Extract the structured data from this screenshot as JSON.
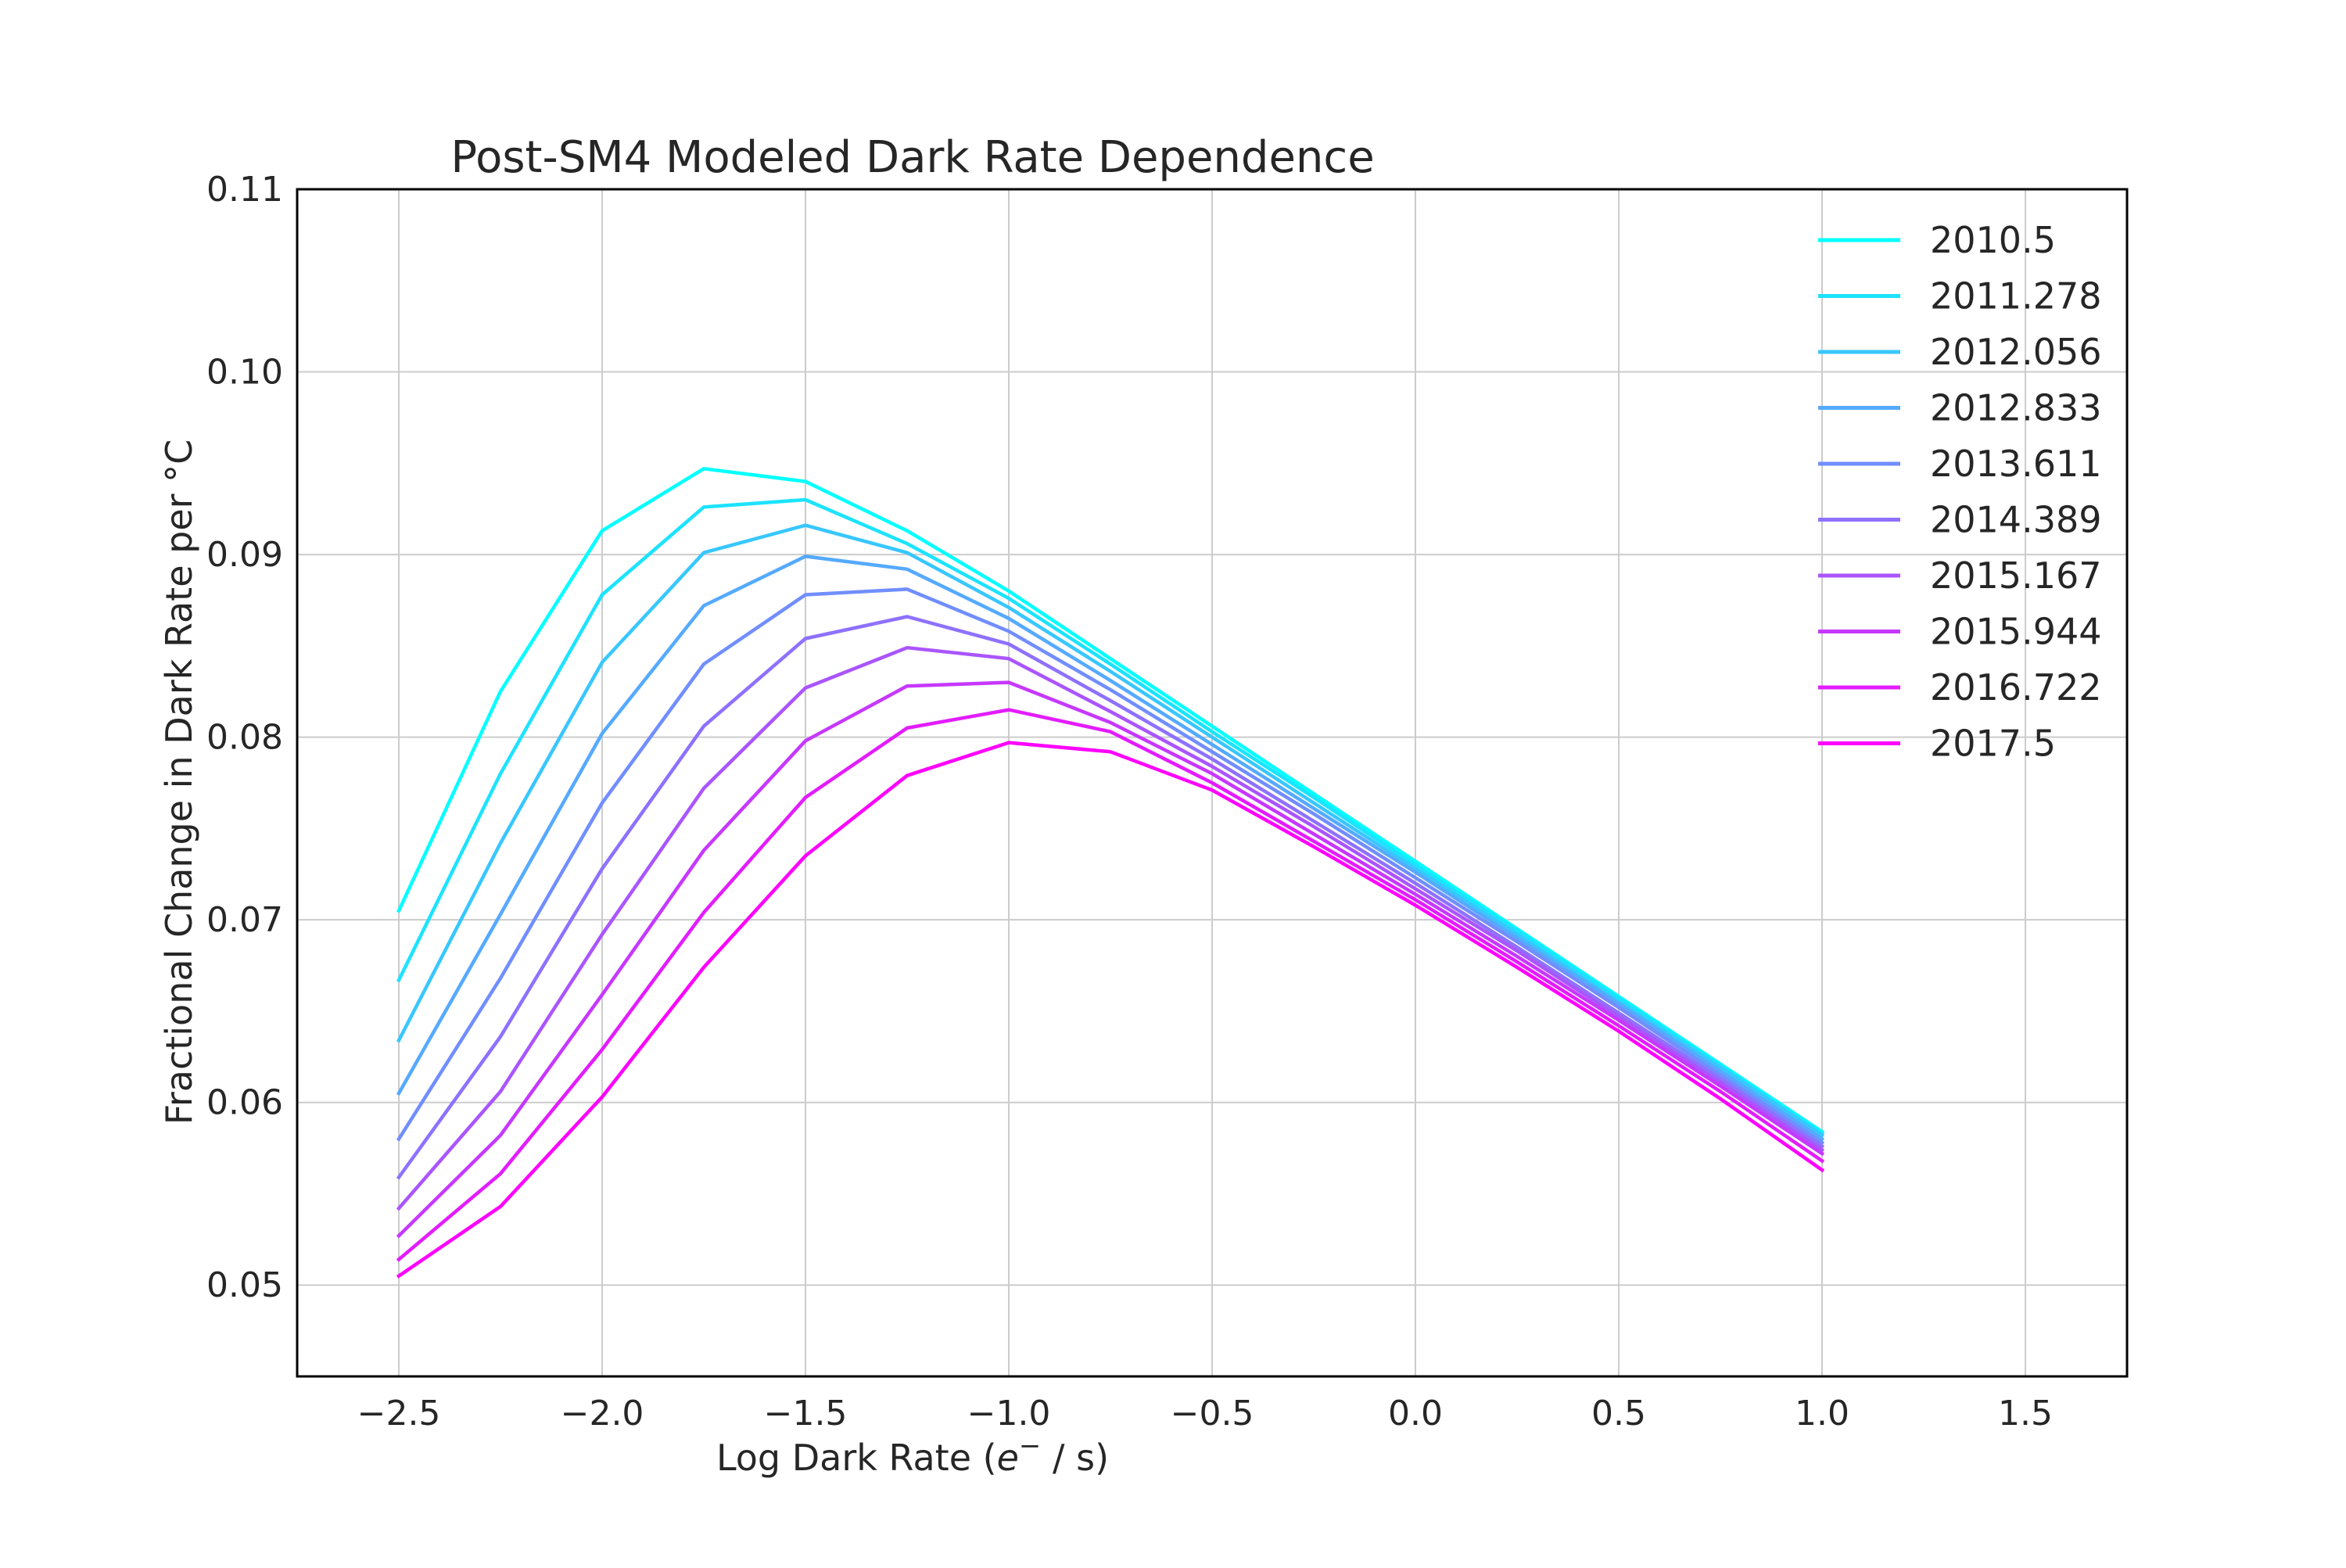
{
  "chart_data": {
    "type": "line",
    "title": "Post-SM4 Modeled Dark Rate Dependence",
    "xlabel_main": "Log Dark Rate (",
    "xlabel_italic": "e",
    "xlabel_sup": "−",
    "xlabel_tail": " / s)",
    "ylabel": "Fractional Change in Dark Rate per °C",
    "xlim": [
      -2.75,
      1.75
    ],
    "ylim": [
      0.045,
      0.11
    ],
    "xticks": [
      -2.5,
      -2.0,
      -1.5,
      -1.0,
      -0.5,
      0.0,
      0.5,
      1.0,
      1.5
    ],
    "xtick_labels": [
      "−2.5",
      "−2.0",
      "−1.5",
      "−1.0",
      "−0.5",
      "0.0",
      "0.5",
      "1.0",
      "1.5"
    ],
    "yticks": [
      0.05,
      0.06,
      0.07,
      0.08,
      0.09,
      0.1,
      0.11
    ],
    "ytick_labels": [
      "0.05",
      "0.06",
      "0.07",
      "0.08",
      "0.09",
      "0.10",
      "0.11"
    ],
    "grid": true,
    "legend_position": "top-right",
    "x": [
      -2.5,
      -2.25,
      -2.0,
      -1.75,
      -1.5,
      -1.25,
      -1.0,
      -0.75,
      -0.5,
      -0.25,
      0.0,
      0.25,
      0.5,
      0.75,
      1.0
    ],
    "series": [
      {
        "name": "2010.5",
        "color": "#00ffff",
        "values": [
          0.0705,
          0.0825,
          0.0913,
          0.0947,
          0.094,
          0.0913,
          0.088,
          0.0843,
          0.0806,
          0.0769,
          0.0732,
          0.0695,
          0.0658,
          0.0621,
          0.0584
        ]
      },
      {
        "name": "2011.278",
        "color": "#1ce3ff",
        "values": [
          0.0667,
          0.078,
          0.0878,
          0.0926,
          0.093,
          0.0906,
          0.0876,
          0.084,
          0.0803,
          0.0767,
          0.073,
          0.0694,
          0.0657,
          0.062,
          0.0583
        ]
      },
      {
        "name": "2012.056",
        "color": "#38c7ff",
        "values": [
          0.0634,
          0.0742,
          0.0841,
          0.0901,
          0.0916,
          0.0901,
          0.0871,
          0.0836,
          0.08,
          0.0764,
          0.0728,
          0.0692,
          0.0655,
          0.0619,
          0.0582
        ]
      },
      {
        "name": "2012.833",
        "color": "#55aaff",
        "values": [
          0.0605,
          0.0703,
          0.0802,
          0.0872,
          0.0899,
          0.0892,
          0.0865,
          0.0831,
          0.0796,
          0.0761,
          0.0726,
          0.069,
          0.0654,
          0.0617,
          0.058
        ]
      },
      {
        "name": "2013.611",
        "color": "#718eff",
        "values": [
          0.058,
          0.0668,
          0.0764,
          0.084,
          0.0878,
          0.0881,
          0.0858,
          0.0826,
          0.0792,
          0.0758,
          0.0723,
          0.0688,
          0.0652,
          0.0615,
          0.0578
        ]
      },
      {
        "name": "2014.389",
        "color": "#8e71ff",
        "values": [
          0.0559,
          0.0636,
          0.0728,
          0.0806,
          0.0854,
          0.0866,
          0.0851,
          0.082,
          0.0788,
          0.0754,
          0.072,
          0.0685,
          0.0649,
          0.0613,
          0.0576
        ]
      },
      {
        "name": "2015.167",
        "color": "#aa55ff",
        "values": [
          0.0542,
          0.0606,
          0.0692,
          0.0772,
          0.0827,
          0.0849,
          0.0843,
          0.0814,
          0.0784,
          0.0751,
          0.0717,
          0.0683,
          0.0647,
          0.0611,
          0.0574
        ]
      },
      {
        "name": "2015.944",
        "color": "#c638ff",
        "values": [
          0.0527,
          0.0582,
          0.0659,
          0.0738,
          0.0798,
          0.0828,
          0.083,
          0.0808,
          0.078,
          0.0747,
          0.0714,
          0.068,
          0.0645,
          0.0609,
          0.0572
        ]
      },
      {
        "name": "2016.722",
        "color": "#e31cff",
        "values": [
          0.0514,
          0.0561,
          0.0629,
          0.0704,
          0.0767,
          0.0805,
          0.0815,
          0.0803,
          0.0775,
          0.0743,
          0.0711,
          0.0677,
          0.0642,
          0.0606,
          0.0568
        ]
      },
      {
        "name": "2017.5",
        "color": "#ff00ff",
        "values": [
          0.0505,
          0.0543,
          0.0603,
          0.0674,
          0.0735,
          0.0779,
          0.0797,
          0.0792,
          0.0771,
          0.074,
          0.0708,
          0.0674,
          0.0639,
          0.0602,
          0.0563
        ]
      }
    ]
  }
}
